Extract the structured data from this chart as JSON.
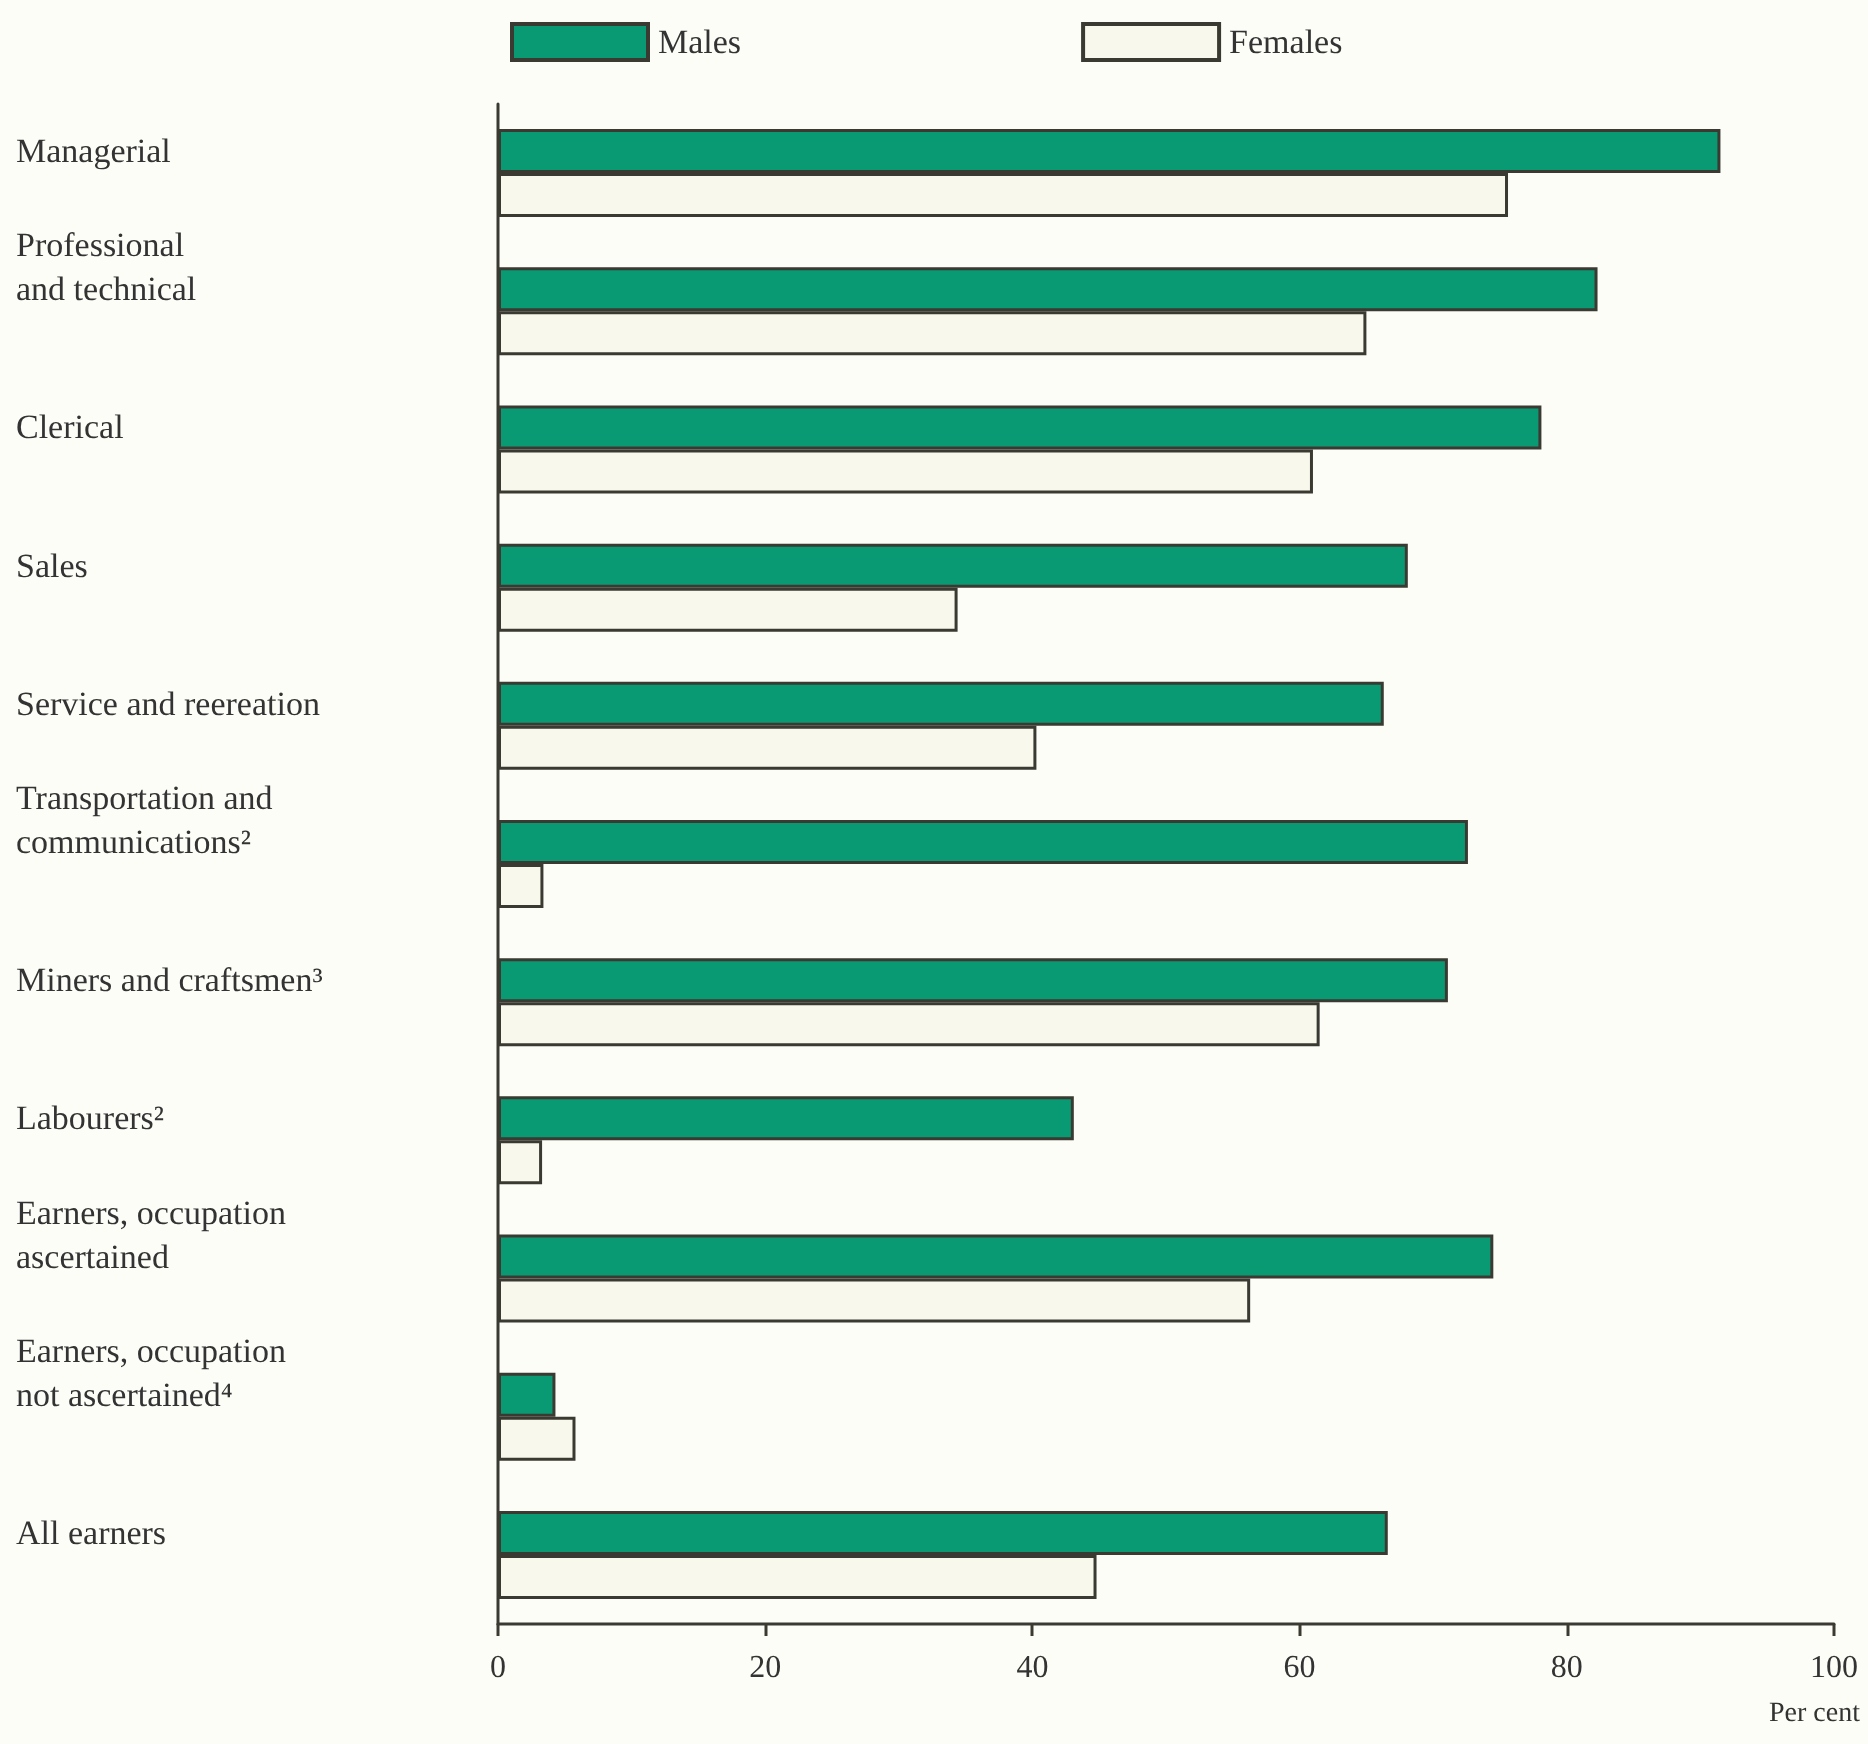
{
  "chart_data": {
    "type": "bar",
    "orientation": "horizontal",
    "xlabel": "Per cent",
    "categories": [
      "Managerial",
      "Professional\nand technical",
      "Clerical",
      "Sales",
      "Service and reereation",
      "Transportation and\ncommunications²",
      "Miners and craftsmen³",
      "Labourers²",
      "Earners, occupation\nascertained",
      "Earners, occupation\nnot ascertained⁴",
      "All earners"
    ],
    "series": [
      {
        "name": "Males",
        "color": "#0a9a73",
        "values": [
          91.5,
          82.3,
          78.1,
          68.1,
          66.3,
          72.6,
          71.1,
          43.1,
          74.5,
          4.3,
          66.6
        ]
      },
      {
        "name": "Females",
        "color": "#f8f9ec",
        "values": [
          75.6,
          65,
          61,
          34.4,
          40.3,
          3.4,
          61.5,
          3.3,
          56.3,
          5.8,
          44.8
        ]
      }
    ],
    "xlim": [
      0,
      100
    ],
    "xticks": [
      0,
      20,
      40,
      60,
      80,
      100
    ],
    "grid": false,
    "legend": "top"
  }
}
